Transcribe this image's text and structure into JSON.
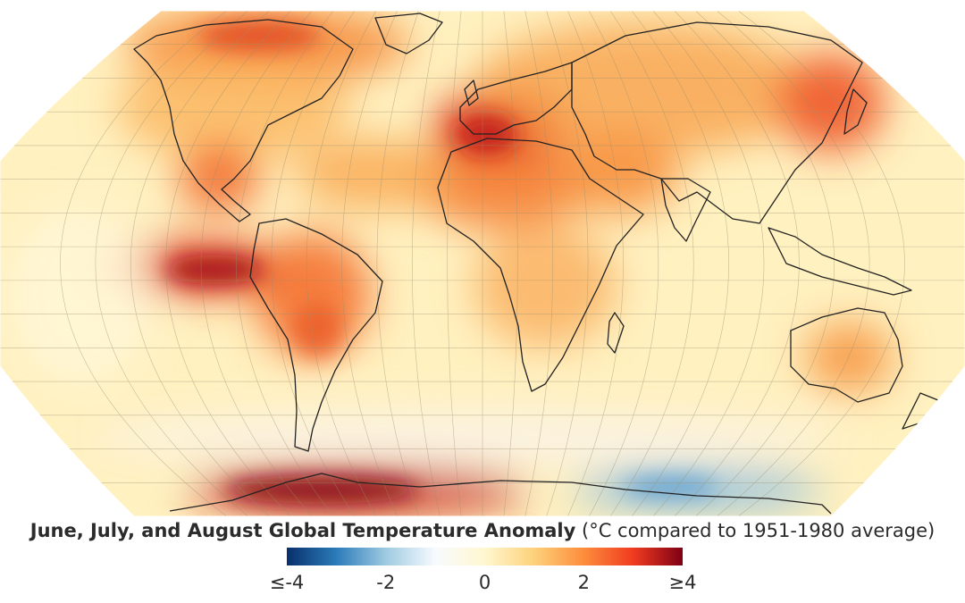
{
  "title": "June, July, and August Global Temperature Anomaly",
  "units_note": "(°C compared to 1951-1980 average)",
  "legend": {
    "ticks": [
      "≤-4",
      "-2",
      "0",
      "2",
      "≥4"
    ],
    "min": -4,
    "max": 4,
    "colors": [
      "#08306b",
      "#2b7bba",
      "#9ecae1",
      "#f7fbff",
      "#fff7d0",
      "#fdd17a",
      "#fd8d3c",
      "#f03b20",
      "#7f0015"
    ]
  },
  "projection": "Robinson",
  "map_background_color": "#fff3c4",
  "land_outline_color": "#222222",
  "graticule": true
}
